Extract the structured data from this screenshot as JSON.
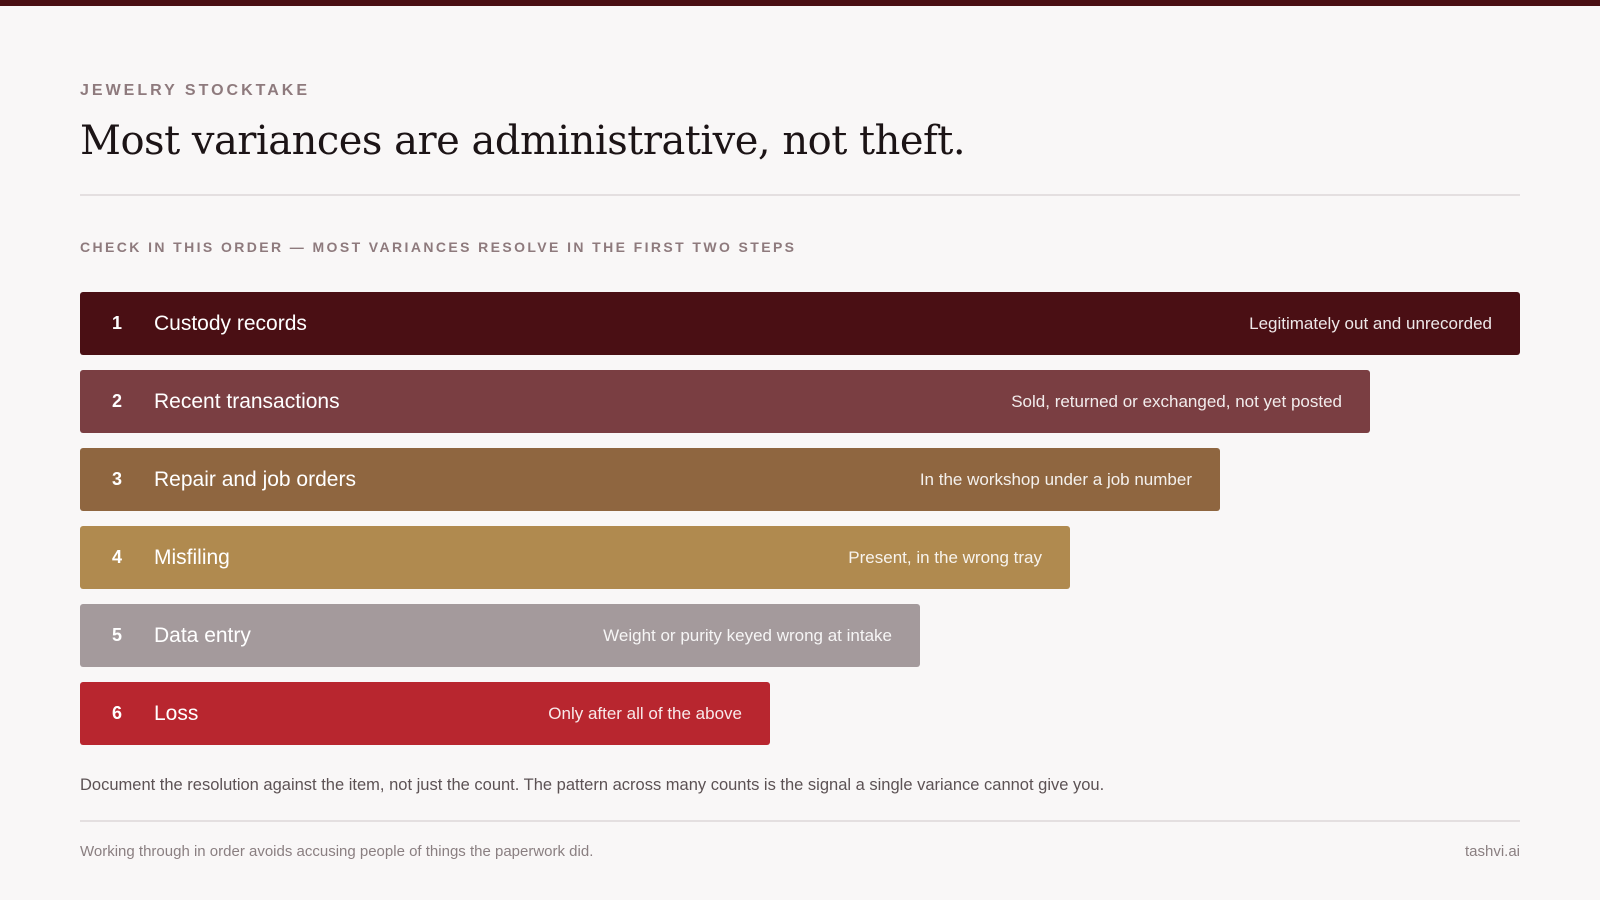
{
  "header": {
    "eyebrow": "JEWELRY STOCKTAKE",
    "title": "Most variances are administrative, not theft."
  },
  "section_label": "CHECK IN THIS ORDER — MOST VARIANCES RESOLVE IN THE FIRST TWO STEPS",
  "steps": [
    {
      "rank": 1,
      "label": "Custody records",
      "note": "Legitimately out and unrecorded"
    },
    {
      "rank": 2,
      "label": "Recent transactions",
      "note": "Sold, returned or exchanged, not yet posted"
    },
    {
      "rank": 3,
      "label": "Repair and job orders",
      "note": "In the workshop under a job number"
    },
    {
      "rank": 4,
      "label": "Misfiling",
      "note": "Present, in the wrong tray"
    },
    {
      "rank": 5,
      "label": "Data entry",
      "note": "Weight or purity keyed wrong at intake"
    },
    {
      "rank": 6,
      "label": "Loss",
      "note": "Only after all of the above"
    }
  ],
  "note": "Document the resolution against the item, not just the count. The pattern across many counts is the signal a single variance cannot give you.",
  "footer": {
    "left": "Working through in order avoids accusing people of things the paperwork did.",
    "right": "tashvi.ai"
  }
}
